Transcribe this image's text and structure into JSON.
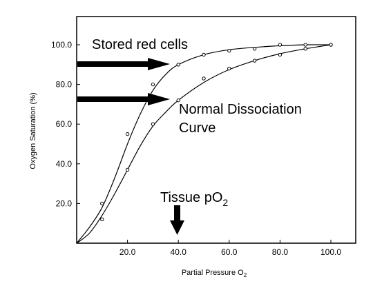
{
  "chart_data": {
    "type": "scatter",
    "title": "",
    "xlabel": "Partial Pressure O",
    "xlabel_sub": "2",
    "ylabel": "Oxygen Saturation (%)",
    "xlim": [
      0,
      110
    ],
    "ylim": [
      0,
      108
    ],
    "x_ticks": [
      20,
      40,
      60,
      80,
      100
    ],
    "x_tick_labels": [
      "20.0",
      "40.0",
      "60.0",
      "80.0",
      "100.0"
    ],
    "y_ticks": [
      20,
      40,
      60,
      80,
      100
    ],
    "y_tick_labels": [
      "20.0",
      "40.0",
      "60.0",
      "80.0",
      "100.0"
    ],
    "grid": false,
    "series": [
      {
        "name": "Stored red cells",
        "points": [
          [
            10,
            20
          ],
          [
            20,
            55
          ],
          [
            30,
            80
          ],
          [
            40,
            90
          ],
          [
            50,
            95
          ],
          [
            60,
            97
          ],
          [
            70,
            98
          ],
          [
            80,
            100
          ],
          [
            90,
            100
          ],
          [
            100,
            100
          ]
        ],
        "curve": [
          [
            0,
            0
          ],
          [
            5,
            8
          ],
          [
            10,
            18
          ],
          [
            15,
            33
          ],
          [
            20,
            50
          ],
          [
            25,
            65
          ],
          [
            30,
            77
          ],
          [
            35,
            85
          ],
          [
            40,
            90
          ],
          [
            50,
            95
          ],
          [
            60,
            97.5
          ],
          [
            70,
            98.7
          ],
          [
            80,
            99.5
          ],
          [
            90,
            100
          ],
          [
            100,
            100
          ]
        ]
      },
      {
        "name": "Normal Dissociation Curve",
        "points": [
          [
            10,
            12
          ],
          [
            20,
            37
          ],
          [
            30,
            60
          ],
          [
            40,
            72
          ],
          [
            50,
            83
          ],
          [
            60,
            88
          ],
          [
            70,
            92
          ],
          [
            80,
            95
          ],
          [
            90,
            98
          ],
          [
            100,
            100
          ]
        ],
        "curve": [
          [
            0,
            0
          ],
          [
            5,
            5
          ],
          [
            10,
            14
          ],
          [
            15,
            25
          ],
          [
            20,
            37
          ],
          [
            25,
            49
          ],
          [
            30,
            59
          ],
          [
            35,
            66
          ],
          [
            40,
            72
          ],
          [
            50,
            81
          ],
          [
            60,
            87.5
          ],
          [
            70,
            92
          ],
          [
            80,
            95.5
          ],
          [
            90,
            98
          ],
          [
            100,
            100
          ]
        ]
      }
    ],
    "annotations": {
      "stored_label": "Stored red cells",
      "normal_label_line1": "Normal Dissociation",
      "normal_label_line2": "Curve",
      "tissue_label": "Tissue pO",
      "tissue_label_sub": "2",
      "tissue_x": 40
    }
  }
}
